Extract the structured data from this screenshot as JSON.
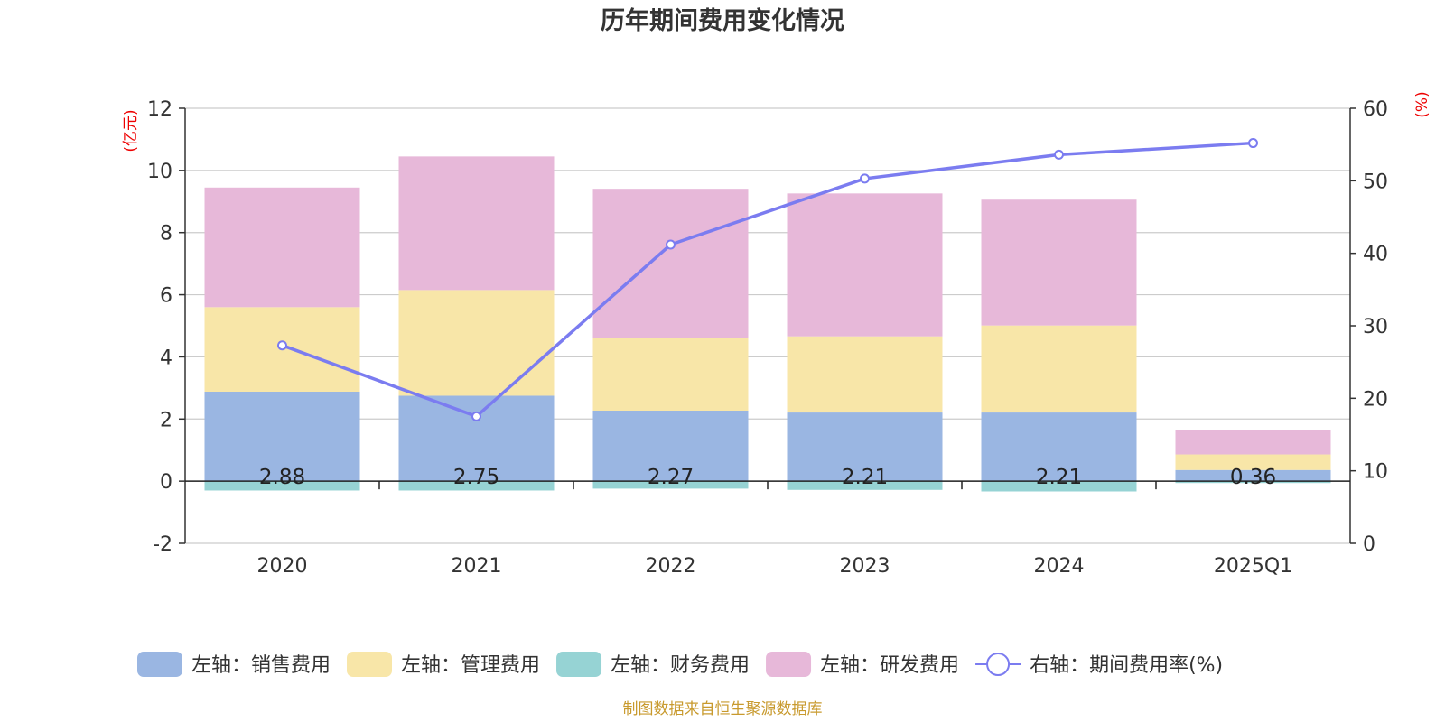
{
  "colors": {
    "sales": "#9ab6e2",
    "admin": "#f8e6a8",
    "finance": "#96d3d4",
    "rd": "#e7b8d9",
    "rate": "#7b7cf0",
    "unit": "#ee0000",
    "source": "#c89a2e",
    "grid": "#cccccc"
  },
  "chart_data": {
    "type": "bar",
    "title": "历年期间费用变化情况",
    "categories": [
      "2020",
      "2021",
      "2022",
      "2023",
      "2024",
      "2025Q1"
    ],
    "y_left": {
      "unit_label": "(亿元)",
      "ylim": [
        -2,
        12
      ],
      "ticks": [
        -2,
        0,
        2,
        4,
        6,
        8,
        10,
        12
      ]
    },
    "y_right": {
      "unit_label": "(%)",
      "ylim": [
        0,
        60
      ],
      "ticks": [
        0,
        10,
        20,
        30,
        40,
        50,
        60
      ]
    },
    "grid": true,
    "legend_position": "bottom",
    "series": [
      {
        "key": "sales",
        "name": "左轴：销售费用",
        "axis": "left",
        "values": [
          2.88,
          2.75,
          2.27,
          2.21,
          2.21,
          0.36
        ],
        "labels": [
          "2.88",
          "2.75",
          "2.27",
          "2.21",
          "2.21",
          "0.36"
        ]
      },
      {
        "key": "admin",
        "name": "左轴：管理费用",
        "axis": "left",
        "values": [
          2.72,
          3.4,
          2.34,
          2.45,
          2.8,
          0.5
        ]
      },
      {
        "key": "finance",
        "name": "左轴：财务费用",
        "axis": "left",
        "values": [
          -0.3,
          -0.3,
          -0.24,
          -0.28,
          -0.33,
          -0.06
        ]
      },
      {
        "key": "rd",
        "name": "左轴：研发费用",
        "axis": "left",
        "values": [
          3.85,
          4.3,
          4.8,
          4.6,
          4.05,
          0.78
        ]
      },
      {
        "key": "rate",
        "name": "右轴：期间费用率(%)",
        "axis": "right",
        "type": "line",
        "values": [
          27.3,
          17.5,
          41.2,
          50.3,
          53.6,
          55.2
        ]
      }
    ]
  },
  "footer": {
    "source": "制图数据来自恒生聚源数据库"
  }
}
